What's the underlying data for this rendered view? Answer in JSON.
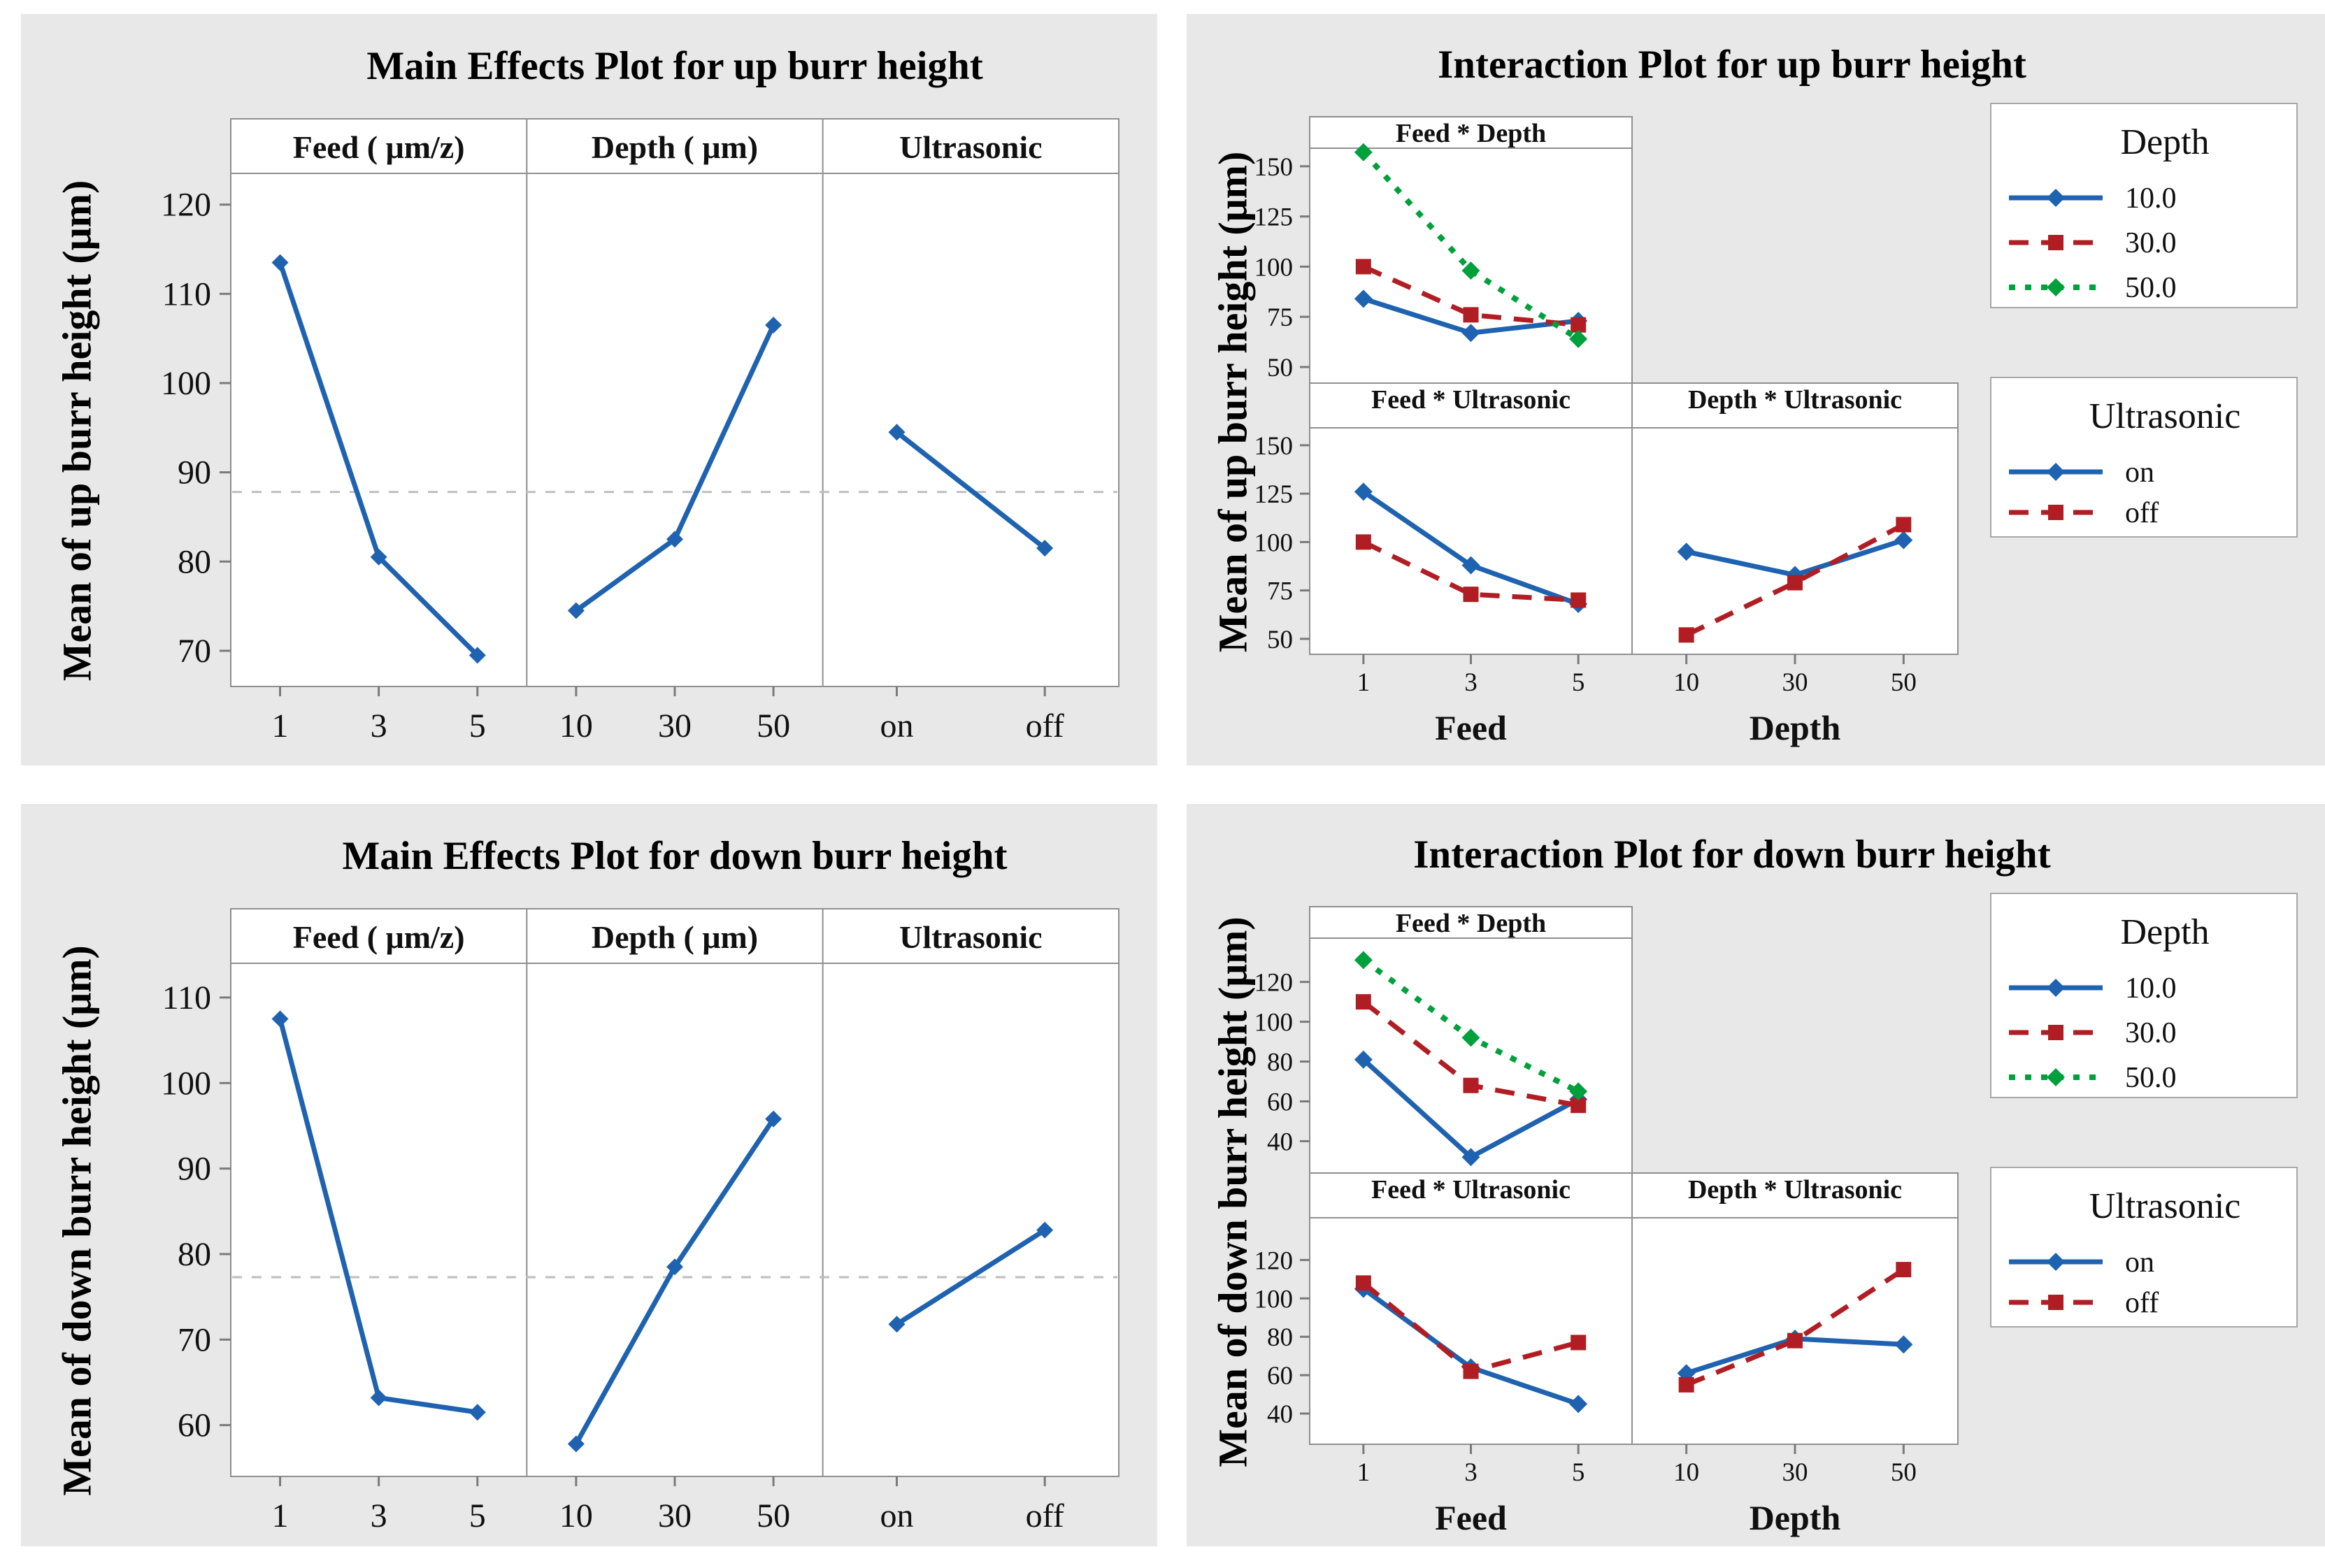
{
  "colors": {
    "series_blue": "#1e62b0",
    "series_red": "#b01e24",
    "series_green": "#00a03c",
    "figure_bg": "#e8e8e8",
    "panel_bg": "#ffffff",
    "panel_border": "#8f8f8f",
    "grand_mean_line": "#bdbdbd",
    "tick": "#7a7a7a",
    "text": "#101010"
  },
  "chart_data": [
    {
      "id": "up-main",
      "type": "line",
      "kind": "main_effects",
      "title": "Main Effects Plot for up burr height",
      "ylabel": "Mean of up burr height (μm)",
      "yticks": [
        70,
        80,
        90,
        100,
        110,
        120
      ],
      "ylim": [
        66,
        123.5
      ],
      "grand_mean": 87.8,
      "grid": false,
      "legend_position": "none",
      "panels": [
        {
          "header": "Feed ( μm/z)",
          "categories": [
            "1",
            "3",
            "5"
          ],
          "values": [
            113.5,
            80.5,
            69.5
          ]
        },
        {
          "header": "Depth ( μm)",
          "categories": [
            "10",
            "30",
            "50"
          ],
          "values": [
            74.5,
            82.5,
            106.5
          ]
        },
        {
          "header": "Ultrasonic",
          "categories": [
            "on",
            "off"
          ],
          "values": [
            94.5,
            81.5
          ]
        }
      ]
    },
    {
      "id": "up-inter",
      "type": "line",
      "kind": "interaction",
      "title": "Interaction Plot for up burr height",
      "ylabel": "Mean of up burr height (μm)",
      "yticks": [
        50,
        75,
        100,
        125,
        150
      ],
      "ylim": [
        42,
        159
      ],
      "grid": false,
      "legend_position": "right",
      "panels": [
        {
          "header": "Feed * Depth",
          "row": 0,
          "col": 0,
          "categories": [
            "1",
            "3",
            "5"
          ],
          "series": [
            {
              "label": "10.0",
              "style": "blue-solid-diamond",
              "values": [
                84,
                67,
                73
              ]
            },
            {
              "label": "30.0",
              "style": "red-dashed-square",
              "values": [
                100,
                76,
                71
              ]
            },
            {
              "label": "50.0",
              "style": "green-dotted-diamond",
              "values": [
                157,
                98,
                64
              ]
            }
          ]
        },
        {
          "header": "Feed * Ultrasonic",
          "row": 1,
          "col": 0,
          "categories": [
            "1",
            "3",
            "5"
          ],
          "xlabel": "Feed",
          "series": [
            {
              "label": "on",
              "style": "blue-solid-diamond",
              "values": [
                126,
                88,
                68
              ]
            },
            {
              "label": "off",
              "style": "red-dashed-square",
              "values": [
                100,
                73,
                70
              ]
            }
          ]
        },
        {
          "header": "Depth * Ultrasonic",
          "row": 1,
          "col": 1,
          "categories": [
            "10",
            "30",
            "50"
          ],
          "xlabel": "Depth",
          "series": [
            {
              "label": "on",
              "style": "blue-solid-diamond",
              "values": [
                95,
                83,
                101
              ]
            },
            {
              "label": "off",
              "style": "red-dashed-square",
              "values": [
                52,
                79,
                109
              ]
            }
          ]
        }
      ],
      "legends": [
        {
          "title": "Depth",
          "entries": [
            {
              "label": "10.0",
              "style": "blue-solid-diamond"
            },
            {
              "label": "30.0",
              "style": "red-dashed-square"
            },
            {
              "label": "50.0",
              "style": "green-dotted-diamond"
            }
          ]
        },
        {
          "title": "Ultrasonic",
          "entries": [
            {
              "label": "on",
              "style": "blue-solid-diamond"
            },
            {
              "label": "off",
              "style": "red-dashed-square"
            }
          ]
        }
      ]
    },
    {
      "id": "down-main",
      "type": "line",
      "kind": "main_effects",
      "title": "Main Effects Plot for down burr height",
      "ylabel": "Mean of down burr height (μm)",
      "yticks": [
        60,
        70,
        80,
        90,
        100,
        110
      ],
      "ylim": [
        54,
        114
      ],
      "grand_mean": 77.3,
      "grid": false,
      "legend_position": "none",
      "panels": [
        {
          "header": "Feed ( μm/z)",
          "categories": [
            "1",
            "3",
            "5"
          ],
          "values": [
            107.5,
            63.2,
            61.5
          ]
        },
        {
          "header": "Depth ( μm)",
          "categories": [
            "10",
            "30",
            "50"
          ],
          "values": [
            57.8,
            78.5,
            95.8
          ]
        },
        {
          "header": "Ultrasonic",
          "categories": [
            "on",
            "off"
          ],
          "values": [
            71.8,
            82.8
          ]
        }
      ]
    },
    {
      "id": "down-inter",
      "type": "line",
      "kind": "interaction",
      "title": "Interaction Plot for down burr height",
      "ylabel": "Mean of down burr height (μm)",
      "yticks": [
        40,
        60,
        80,
        100,
        120
      ],
      "ylim": [
        24,
        142
      ],
      "grid": false,
      "legend_position": "right",
      "panels": [
        {
          "header": "Feed * Depth",
          "row": 0,
          "col": 0,
          "categories": [
            "1",
            "3",
            "5"
          ],
          "series": [
            {
              "label": "10.0",
              "style": "blue-solid-diamond",
              "values": [
                81,
                32,
                61
              ]
            },
            {
              "label": "30.0",
              "style": "red-dashed-square",
              "values": [
                110,
                68,
                58
              ]
            },
            {
              "label": "50.0",
              "style": "green-dotted-diamond",
              "values": [
                131,
                92,
                65
              ]
            }
          ]
        },
        {
          "header": "Feed * Ultrasonic",
          "row": 1,
          "col": 0,
          "categories": [
            "1",
            "3",
            "5"
          ],
          "xlabel": "Feed",
          "series": [
            {
              "label": "on",
              "style": "blue-solid-diamond",
              "values": [
                105,
                64,
                45
              ]
            },
            {
              "label": "off",
              "style": "red-dashed-square",
              "values": [
                108,
                62,
                77
              ]
            }
          ]
        },
        {
          "header": "Depth * Ultrasonic",
          "row": 1,
          "col": 1,
          "categories": [
            "10",
            "30",
            "50"
          ],
          "xlabel": "Depth",
          "series": [
            {
              "label": "on",
              "style": "blue-solid-diamond",
              "values": [
                61,
                79,
                76
              ]
            },
            {
              "label": "off",
              "style": "red-dashed-square",
              "values": [
                55,
                78,
                115
              ]
            }
          ]
        }
      ],
      "legends": [
        {
          "title": "Depth",
          "entries": [
            {
              "label": "10.0",
              "style": "blue-solid-diamond"
            },
            {
              "label": "30.0",
              "style": "red-dashed-square"
            },
            {
              "label": "50.0",
              "style": "green-dotted-diamond"
            }
          ]
        },
        {
          "title": "Ultrasonic",
          "entries": [
            {
              "label": "on",
              "style": "blue-solid-diamond"
            },
            {
              "label": "off",
              "style": "red-dashed-square"
            }
          ]
        }
      ]
    }
  ]
}
